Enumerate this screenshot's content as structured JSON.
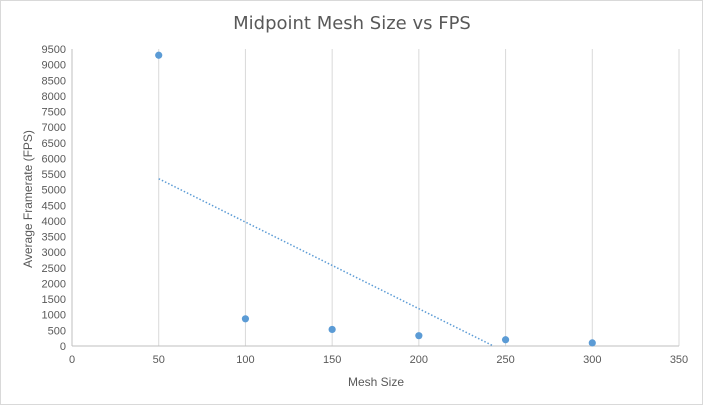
{
  "chart_data": {
    "type": "scatter",
    "title": "Midpoint Mesh Size vs FPS",
    "xlabel": "Mesh Size",
    "ylabel": "Average Framerate  (FPS)",
    "xlim": [
      0,
      350
    ],
    "ylim": [
      0,
      9500
    ],
    "x_ticks": [
      0,
      50,
      100,
      150,
      200,
      250,
      300,
      350
    ],
    "y_ticks": [
      0,
      500,
      1000,
      1500,
      2000,
      2500,
      3000,
      3500,
      4000,
      4500,
      5000,
      5500,
      6000,
      6500,
      7000,
      7500,
      8000,
      8500,
      9000,
      9500
    ],
    "grid": "vertical",
    "series": [
      {
        "x": [
          50,
          100,
          150,
          200,
          250,
          300
        ],
        "y": [
          9300,
          870,
          530,
          330,
          200,
          100
        ],
        "color": "#5b9bd5"
      }
    ],
    "trendline": {
      "type": "linear",
      "x": [
        50,
        243
      ],
      "y": [
        5350,
        0
      ],
      "color": "#5b9bd5",
      "style": "dotted"
    }
  }
}
